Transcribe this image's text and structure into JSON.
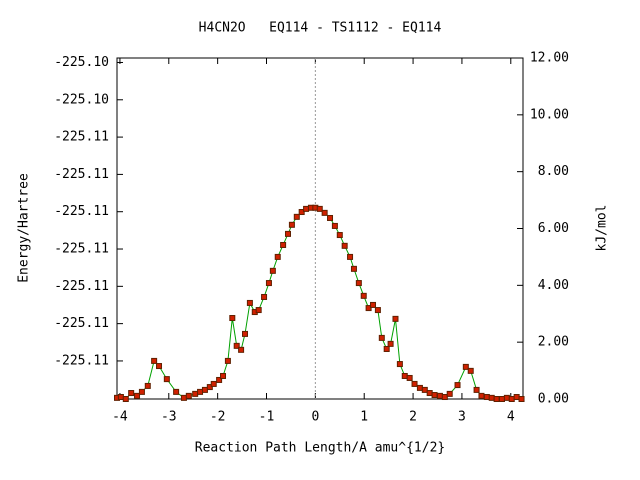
{
  "chart_data": {
    "type": "line",
    "title": "H4CN2O   EQ114 - TS1112 - EQ114",
    "x_label": "Reaction Path Length/A amu^{1/2}",
    "y_label": "Energy/Hartree",
    "y2_label": "kJ/mol",
    "xlim": [
      -4.06,
      4.25
    ],
    "xticks": [
      -4,
      -3,
      -2,
      -1,
      0,
      1,
      2,
      3,
      4
    ],
    "ylim": [
      -225.10901,
      -225.10444
    ],
    "yticks": [
      {
        "value": -225.1085,
        "label": "-225.11"
      },
      {
        "value": -225.108,
        "label": "-225.11"
      },
      {
        "value": -225.1075,
        "label": "-225.11"
      },
      {
        "value": -225.107,
        "label": "-225.11"
      },
      {
        "value": -225.1065,
        "label": "-225.11"
      },
      {
        "value": -225.106,
        "label": "-225.11"
      },
      {
        "value": -225.1055,
        "label": "-225.11"
      },
      {
        "value": -225.105,
        "label": "-225.10"
      },
      {
        "value": -225.1045,
        "label": "-225.10"
      }
    ],
    "y2lim": [
      0,
      12
    ],
    "y2ticks": [
      {
        "value": 0,
        "label": "0.00"
      },
      {
        "value": 2,
        "label": "2.00"
      },
      {
        "value": 4,
        "label": "4.00"
      },
      {
        "value": 6,
        "label": "6.00"
      },
      {
        "value": 8,
        "label": "8.00"
      },
      {
        "value": 10,
        "label": "10.00"
      },
      {
        "value": 12,
        "label": "12.00"
      }
    ],
    "x": [
      -4.06,
      -3.98,
      -3.88,
      -3.77,
      -3.65,
      -3.55,
      -3.43,
      -3.3,
      -3.2,
      -3.04,
      -2.85,
      -2.69,
      -2.59,
      -2.46,
      -2.36,
      -2.26,
      -2.16,
      -2.08,
      -1.97,
      -1.89,
      -1.79,
      -1.7,
      -1.61,
      -1.52,
      -1.44,
      -1.34,
      -1.24,
      -1.16,
      -1.05,
      -0.95,
      -0.87,
      -0.77,
      -0.66,
      -0.56,
      -0.48,
      -0.38,
      -0.28,
      -0.19,
      -0.09,
      0.0,
      0.09,
      0.19,
      0.3,
      0.4,
      0.5,
      0.6,
      0.71,
      0.79,
      0.89,
      0.99,
      1.09,
      1.18,
      1.28,
      1.36,
      1.46,
      1.54,
      1.64,
      1.73,
      1.83,
      1.93,
      2.03,
      2.14,
      2.24,
      2.34,
      2.44,
      2.55,
      2.65,
      2.75,
      2.91,
      3.08,
      3.18,
      3.3,
      3.4,
      3.51,
      3.61,
      3.71,
      3.82,
      3.92,
      4.02,
      4.12,
      4.22
    ],
    "series": [
      {
        "axis": "y2",
        "line_color": "#00a000",
        "color": "#d02000",
        "edge_color": "#602000",
        "values": [
          0.04,
          0.07,
          0.0,
          0.21,
          0.11,
          0.25,
          0.46,
          1.34,
          1.16,
          0.7,
          0.25,
          0.04,
          0.11,
          0.18,
          0.25,
          0.32,
          0.42,
          0.53,
          0.67,
          0.81,
          1.34,
          2.85,
          1.87,
          1.73,
          2.29,
          3.38,
          3.06,
          3.13,
          3.59,
          4.08,
          4.51,
          5.0,
          5.42,
          5.81,
          6.13,
          6.41,
          6.58,
          6.69,
          6.73,
          6.73,
          6.69,
          6.55,
          6.37,
          6.09,
          5.77,
          5.39,
          5.0,
          4.58,
          4.08,
          3.63,
          3.2,
          3.31,
          3.13,
          2.15,
          1.76,
          1.94,
          2.82,
          1.23,
          0.81,
          0.74,
          0.53,
          0.39,
          0.32,
          0.21,
          0.14,
          0.11,
          0.07,
          0.18,
          0.49,
          1.13,
          0.99,
          0.32,
          0.11,
          0.07,
          0.04,
          0.0,
          0.0,
          0.04,
          0.0,
          0.07,
          0.0
        ]
      }
    ]
  }
}
